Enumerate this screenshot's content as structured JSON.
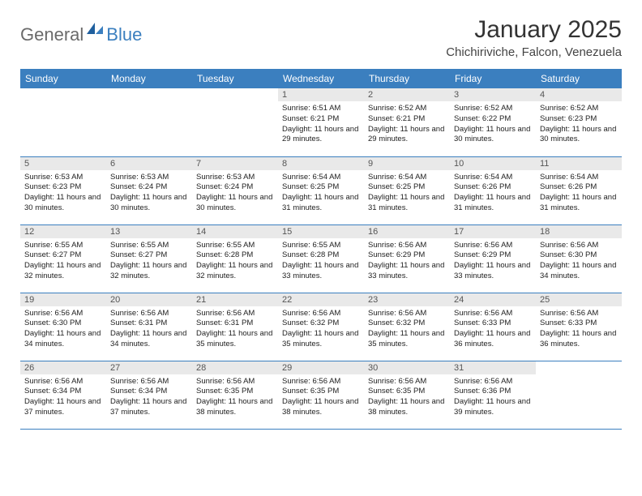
{
  "logo": {
    "general": "General",
    "blue": "Blue"
  },
  "title": "January 2025",
  "location": "Chichiriviche, Falcon, Venezuela",
  "colors": {
    "header_bg": "#3b7fbf",
    "header_text": "#ffffff",
    "daynum_bg": "#e9e9e9",
    "row_border": "#3b7fbf"
  },
  "weekdays": [
    "Sunday",
    "Monday",
    "Tuesday",
    "Wednesday",
    "Thursday",
    "Friday",
    "Saturday"
  ],
  "weeks": [
    [
      null,
      null,
      null,
      {
        "n": "1",
        "sr": "6:51 AM",
        "ss": "6:21 PM",
        "dl": "11 hours and 29 minutes."
      },
      {
        "n": "2",
        "sr": "6:52 AM",
        "ss": "6:21 PM",
        "dl": "11 hours and 29 minutes."
      },
      {
        "n": "3",
        "sr": "6:52 AM",
        "ss": "6:22 PM",
        "dl": "11 hours and 30 minutes."
      },
      {
        "n": "4",
        "sr": "6:52 AM",
        "ss": "6:23 PM",
        "dl": "11 hours and 30 minutes."
      }
    ],
    [
      {
        "n": "5",
        "sr": "6:53 AM",
        "ss": "6:23 PM",
        "dl": "11 hours and 30 minutes."
      },
      {
        "n": "6",
        "sr": "6:53 AM",
        "ss": "6:24 PM",
        "dl": "11 hours and 30 minutes."
      },
      {
        "n": "7",
        "sr": "6:53 AM",
        "ss": "6:24 PM",
        "dl": "11 hours and 30 minutes."
      },
      {
        "n": "8",
        "sr": "6:54 AM",
        "ss": "6:25 PM",
        "dl": "11 hours and 31 minutes."
      },
      {
        "n": "9",
        "sr": "6:54 AM",
        "ss": "6:25 PM",
        "dl": "11 hours and 31 minutes."
      },
      {
        "n": "10",
        "sr": "6:54 AM",
        "ss": "6:26 PM",
        "dl": "11 hours and 31 minutes."
      },
      {
        "n": "11",
        "sr": "6:54 AM",
        "ss": "6:26 PM",
        "dl": "11 hours and 31 minutes."
      }
    ],
    [
      {
        "n": "12",
        "sr": "6:55 AM",
        "ss": "6:27 PM",
        "dl": "11 hours and 32 minutes."
      },
      {
        "n": "13",
        "sr": "6:55 AM",
        "ss": "6:27 PM",
        "dl": "11 hours and 32 minutes."
      },
      {
        "n": "14",
        "sr": "6:55 AM",
        "ss": "6:28 PM",
        "dl": "11 hours and 32 minutes."
      },
      {
        "n": "15",
        "sr": "6:55 AM",
        "ss": "6:28 PM",
        "dl": "11 hours and 33 minutes."
      },
      {
        "n": "16",
        "sr": "6:56 AM",
        "ss": "6:29 PM",
        "dl": "11 hours and 33 minutes."
      },
      {
        "n": "17",
        "sr": "6:56 AM",
        "ss": "6:29 PM",
        "dl": "11 hours and 33 minutes."
      },
      {
        "n": "18",
        "sr": "6:56 AM",
        "ss": "6:30 PM",
        "dl": "11 hours and 34 minutes."
      }
    ],
    [
      {
        "n": "19",
        "sr": "6:56 AM",
        "ss": "6:30 PM",
        "dl": "11 hours and 34 minutes."
      },
      {
        "n": "20",
        "sr": "6:56 AM",
        "ss": "6:31 PM",
        "dl": "11 hours and 34 minutes."
      },
      {
        "n": "21",
        "sr": "6:56 AM",
        "ss": "6:31 PM",
        "dl": "11 hours and 35 minutes."
      },
      {
        "n": "22",
        "sr": "6:56 AM",
        "ss": "6:32 PM",
        "dl": "11 hours and 35 minutes."
      },
      {
        "n": "23",
        "sr": "6:56 AM",
        "ss": "6:32 PM",
        "dl": "11 hours and 35 minutes."
      },
      {
        "n": "24",
        "sr": "6:56 AM",
        "ss": "6:33 PM",
        "dl": "11 hours and 36 minutes."
      },
      {
        "n": "25",
        "sr": "6:56 AM",
        "ss": "6:33 PM",
        "dl": "11 hours and 36 minutes."
      }
    ],
    [
      {
        "n": "26",
        "sr": "6:56 AM",
        "ss": "6:34 PM",
        "dl": "11 hours and 37 minutes."
      },
      {
        "n": "27",
        "sr": "6:56 AM",
        "ss": "6:34 PM",
        "dl": "11 hours and 37 minutes."
      },
      {
        "n": "28",
        "sr": "6:56 AM",
        "ss": "6:35 PM",
        "dl": "11 hours and 38 minutes."
      },
      {
        "n": "29",
        "sr": "6:56 AM",
        "ss": "6:35 PM",
        "dl": "11 hours and 38 minutes."
      },
      {
        "n": "30",
        "sr": "6:56 AM",
        "ss": "6:35 PM",
        "dl": "11 hours and 38 minutes."
      },
      {
        "n": "31",
        "sr": "6:56 AM",
        "ss": "6:36 PM",
        "dl": "11 hours and 39 minutes."
      },
      null
    ]
  ],
  "labels": {
    "sunrise": "Sunrise:",
    "sunset": "Sunset:",
    "daylight": "Daylight:"
  }
}
